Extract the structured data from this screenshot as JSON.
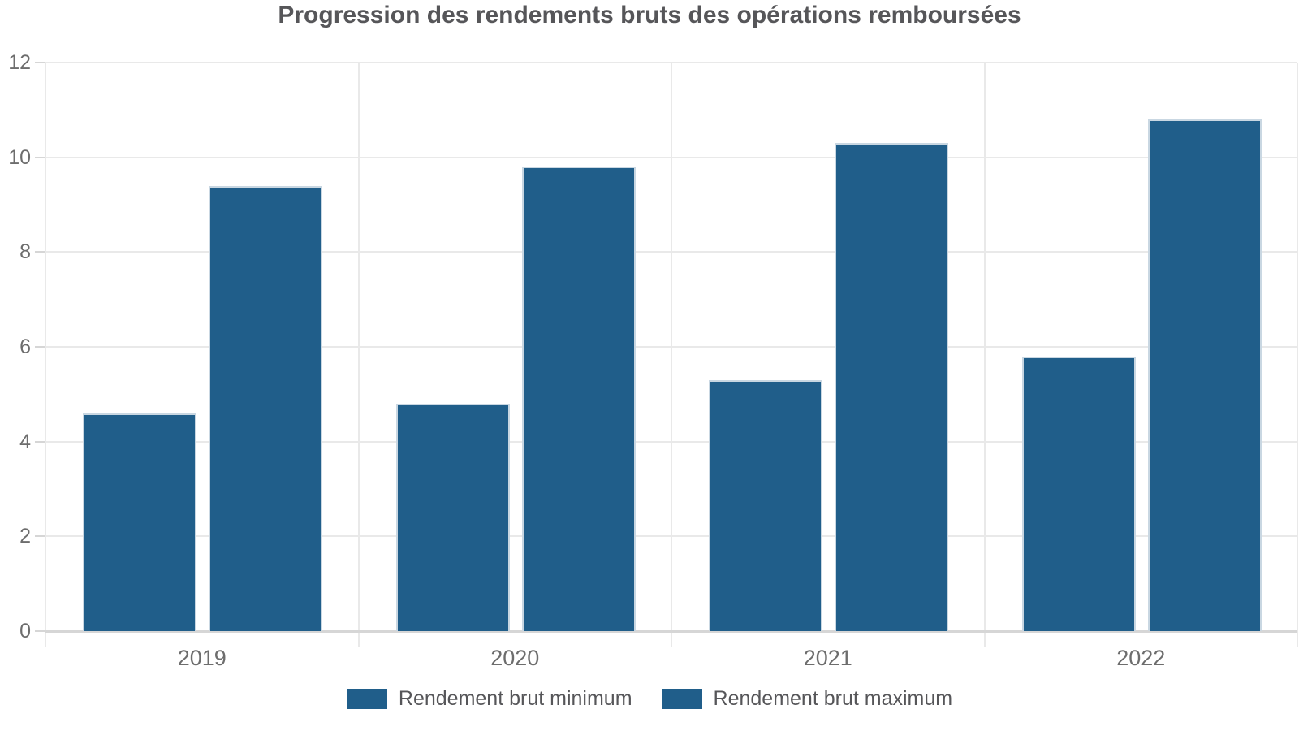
{
  "chart_data": {
    "type": "bar",
    "title": "Progression des rendements bruts des opérations remboursées",
    "categories": [
      "2019",
      "2020",
      "2021",
      "2022"
    ],
    "series": [
      {
        "name": "Rendement brut minimum",
        "values": [
          4.6,
          4.8,
          5.3,
          5.8
        ],
        "color": "#205E8A"
      },
      {
        "name": "Rendement brut maximum",
        "values": [
          9.4,
          9.8,
          10.3,
          10.8
        ],
        "color": "#205E8A"
      }
    ],
    "xlabel": "",
    "ylabel": "",
    "ylim": [
      0,
      12
    ],
    "y_ticks": [
      0,
      2,
      4,
      6,
      8,
      10,
      12
    ],
    "grid": "horizontal gridlines + vertical category separators with ticks below axis",
    "legend_position": "bottom-center",
    "colors": {
      "bar": "#205E8A",
      "bar_border": "#C9D7E2",
      "gridline": "#E9E9E9",
      "axis_line": "#D6D6D6",
      "tick_label": "#6D6D6D",
      "title_text": "#565659",
      "legend_text": "#565659",
      "background": "#FFFFFF"
    }
  }
}
